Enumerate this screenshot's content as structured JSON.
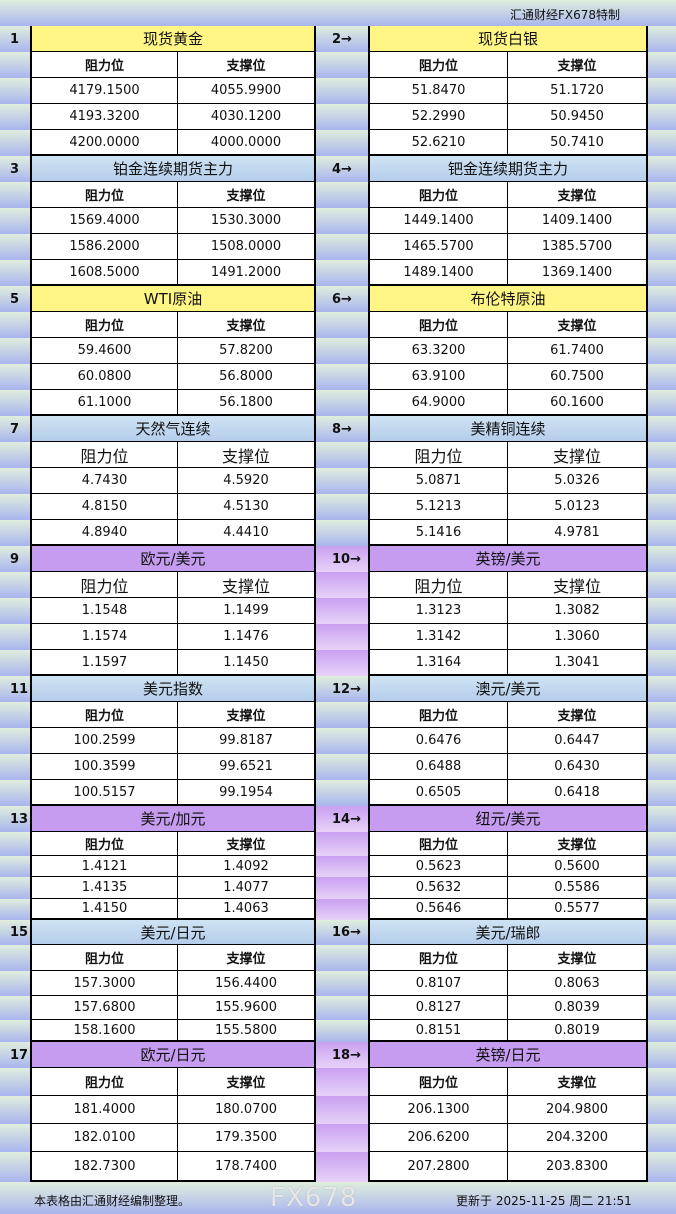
{
  "header": {
    "brand": "汇通财经FX678特制"
  },
  "columns": {
    "resistance": "阻力位",
    "support": "支撑位"
  },
  "sections": [
    {
      "num": "1",
      "title": "现货黄金",
      "rows": [
        [
          "4179.1500",
          "4055.9900"
        ],
        [
          "4193.3200",
          "4030.1200"
        ],
        [
          "4200.0000",
          "4000.0000"
        ]
      ]
    },
    {
      "num": "2→",
      "title": "现货白银",
      "rows": [
        [
          "51.8470",
          "51.1720"
        ],
        [
          "52.2990",
          "50.9450"
        ],
        [
          "52.6210",
          "50.7410"
        ]
      ]
    },
    {
      "num": "3",
      "title": "铂金连续期货主力",
      "rows": [
        [
          "1569.4000",
          "1530.3000"
        ],
        [
          "1586.2000",
          "1508.0000"
        ],
        [
          "1608.5000",
          "1491.2000"
        ]
      ]
    },
    {
      "num": "4→",
      "title": "钯金连续期货主力",
      "rows": [
        [
          "1449.1400",
          "1409.1400"
        ],
        [
          "1465.5700",
          "1385.5700"
        ],
        [
          "1489.1400",
          "1369.1400"
        ]
      ]
    },
    {
      "num": "5",
      "title": "WTI原油",
      "rows": [
        [
          "59.4600",
          "57.8200"
        ],
        [
          "60.0800",
          "56.8000"
        ],
        [
          "61.1000",
          "56.1800"
        ]
      ]
    },
    {
      "num": "6→",
      "title": "布伦特原油",
      "rows": [
        [
          "63.3200",
          "61.7400"
        ],
        [
          "63.9100",
          "60.7500"
        ],
        [
          "64.9000",
          "60.1600"
        ]
      ]
    },
    {
      "num": "7",
      "title": "天然气连续",
      "rows": [
        [
          "4.7430",
          "4.5920"
        ],
        [
          "4.8150",
          "4.5130"
        ],
        [
          "4.8940",
          "4.4410"
        ]
      ]
    },
    {
      "num": "8→",
      "title": "美精铜连续",
      "rows": [
        [
          "5.0871",
          "5.0326"
        ],
        [
          "5.1213",
          "5.0123"
        ],
        [
          "5.1416",
          "4.9781"
        ]
      ]
    },
    {
      "num": "9",
      "title": "欧元/美元",
      "rows": [
        [
          "1.1548",
          "1.1499"
        ],
        [
          "1.1574",
          "1.1476"
        ],
        [
          "1.1597",
          "1.1450"
        ]
      ]
    },
    {
      "num": "10→",
      "title": "英镑/美元",
      "rows": [
        [
          "1.3123",
          "1.3082"
        ],
        [
          "1.3142",
          "1.3060"
        ],
        [
          "1.3164",
          "1.3041"
        ]
      ]
    },
    {
      "num": "11",
      "title": "美元指数",
      "rows": [
        [
          "100.2599",
          "99.8187"
        ],
        [
          "100.3599",
          "99.6521"
        ],
        [
          "100.5157",
          "99.1954"
        ]
      ]
    },
    {
      "num": "12→",
      "title": "澳元/美元",
      "rows": [
        [
          "0.6476",
          "0.6447"
        ],
        [
          "0.6488",
          "0.6430"
        ],
        [
          "0.6505",
          "0.6418"
        ]
      ]
    },
    {
      "num": "13",
      "title": "美元/加元",
      "rows": [
        [
          "1.4121",
          "1.4092"
        ],
        [
          "1.4135",
          "1.4077"
        ],
        [
          "1.4150",
          "1.4063"
        ]
      ]
    },
    {
      "num": "14→",
      "title": "纽元/美元",
      "rows": [
        [
          "0.5623",
          "0.5600"
        ],
        [
          "0.5632",
          "0.5586"
        ],
        [
          "0.5646",
          "0.5577"
        ]
      ]
    },
    {
      "num": "15",
      "title": "美元/日元",
      "rows": [
        [
          "157.3000",
          "156.4400"
        ],
        [
          "157.6800",
          "155.9600"
        ],
        [
          "158.1600",
          "155.5800"
        ]
      ]
    },
    {
      "num": "16→",
      "title": "美元/瑞郎",
      "rows": [
        [
          "0.8107",
          "0.8063"
        ],
        [
          "0.8127",
          "0.8039"
        ],
        [
          "0.8151",
          "0.8019"
        ]
      ]
    },
    {
      "num": "17",
      "title": "欧元/日元",
      "rows": [
        [
          "181.4000",
          "180.0700"
        ],
        [
          "182.0100",
          "179.3500"
        ],
        [
          "182.7300",
          "178.7400"
        ]
      ]
    },
    {
      "num": "18→",
      "title": "英镑/日元",
      "rows": [
        [
          "206.1300",
          "204.9800"
        ],
        [
          "206.6200",
          "204.3200"
        ],
        [
          "207.2800",
          "203.8300"
        ]
      ]
    }
  ],
  "colors": {
    "yellow_header": "#fff585",
    "blue_header": "#c2d8ef",
    "purple_header": "#c59cf0"
  },
  "footer": {
    "note": "本表格由汇通财经编制整理。",
    "updated": "更新于 2025-11-25 周二 21:51",
    "watermark": "FX678"
  }
}
